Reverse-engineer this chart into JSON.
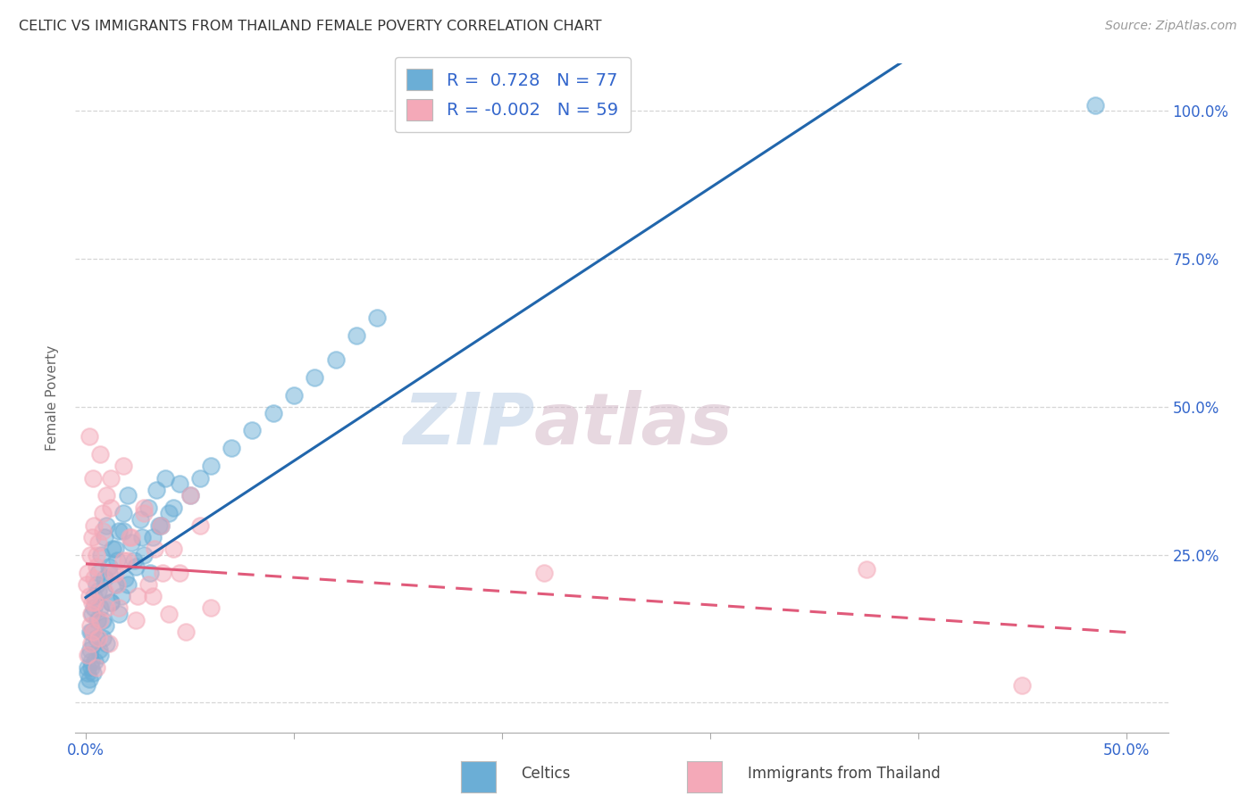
{
  "title": "CELTIC VS IMMIGRANTS FROM THAILAND FEMALE POVERTY CORRELATION CHART",
  "source": "Source: ZipAtlas.com",
  "ylabel": "Female Poverty",
  "celtics_R": 0.728,
  "celtics_N": 77,
  "thailand_R": -0.002,
  "thailand_N": 59,
  "celtics_color": "#6baed6",
  "celtics_line_color": "#2166ac",
  "thailand_color": "#f4a9b8",
  "thailand_line_color": "#e05a7a",
  "watermark_zip": "ZIP",
  "watermark_atlas": "atlas",
  "xmin": 0.0,
  "xmax": 50.0,
  "ymin": 0.0,
  "ymax": 105.0,
  "celtics_x": [
    0.1,
    0.15,
    0.2,
    0.25,
    0.3,
    0.35,
    0.4,
    0.45,
    0.5,
    0.55,
    0.6,
    0.65,
    0.7,
    0.75,
    0.8,
    0.85,
    0.9,
    0.95,
    1.0,
    1.1,
    1.2,
    1.3,
    1.4,
    1.5,
    1.6,
    1.7,
    1.8,
    1.9,
    2.0,
    2.2,
    2.4,
    2.6,
    2.8,
    3.0,
    3.2,
    3.4,
    3.6,
    3.8,
    4.0,
    4.5,
    0.05,
    0.1,
    0.15,
    0.2,
    0.25,
    0.3,
    0.35,
    0.4,
    0.5,
    0.6,
    0.7,
    0.8,
    0.9,
    1.0,
    1.1,
    1.2,
    1.4,
    1.6,
    1.8,
    2.0,
    2.3,
    2.7,
    3.1,
    3.5,
    4.2,
    5.0,
    5.5,
    6.0,
    7.0,
    8.0,
    9.0,
    10.0,
    11.0,
    12.0,
    13.0,
    14.0,
    48.5
  ],
  "celtics_y": [
    5.0,
    8.0,
    12.0,
    6.0,
    15.0,
    10.0,
    18.0,
    7.0,
    20.0,
    14.0,
    22.0,
    9.0,
    16.0,
    25.0,
    11.0,
    19.0,
    28.0,
    13.0,
    30.0,
    22.0,
    17.0,
    26.0,
    20.0,
    24.0,
    29.0,
    18.0,
    32.0,
    21.0,
    35.0,
    27.0,
    23.0,
    31.0,
    25.0,
    33.0,
    28.0,
    36.0,
    30.0,
    38.0,
    32.0,
    37.0,
    3.0,
    6.0,
    4.0,
    9.0,
    7.0,
    12.0,
    5.0,
    16.0,
    11.0,
    19.0,
    8.0,
    14.0,
    21.0,
    10.0,
    23.0,
    17.0,
    26.0,
    15.0,
    29.0,
    20.0,
    24.0,
    28.0,
    22.0,
    30.0,
    33.0,
    35.0,
    38.0,
    40.0,
    43.0,
    46.0,
    49.0,
    52.0,
    55.0,
    58.0,
    62.0,
    65.0,
    101.0
  ],
  "thailand_x": [
    0.05,
    0.1,
    0.15,
    0.2,
    0.25,
    0.3,
    0.35,
    0.4,
    0.45,
    0.5,
    0.6,
    0.7,
    0.8,
    0.9,
    1.0,
    1.1,
    1.2,
    1.4,
    1.6,
    1.8,
    2.0,
    2.2,
    2.5,
    2.8,
    3.0,
    3.3,
    3.6,
    4.0,
    4.5,
    5.0,
    0.1,
    0.2,
    0.3,
    0.4,
    0.5,
    0.6,
    0.8,
    1.0,
    1.2,
    1.5,
    1.8,
    2.1,
    2.4,
    2.8,
    3.2,
    3.7,
    4.2,
    4.8,
    5.5,
    6.0,
    0.15,
    0.25,
    0.35,
    0.5,
    0.7,
    1.3,
    22.0,
    37.5,
    45.0
  ],
  "thailand_y": [
    20.0,
    22.0,
    18.0,
    25.0,
    15.0,
    28.0,
    12.0,
    30.0,
    17.0,
    23.0,
    27.0,
    14.0,
    32.0,
    19.0,
    35.0,
    10.0,
    38.0,
    22.0,
    16.0,
    40.0,
    24.0,
    28.0,
    18.0,
    33.0,
    20.0,
    26.0,
    30.0,
    15.0,
    22.0,
    35.0,
    8.0,
    13.0,
    17.0,
    21.0,
    25.0,
    11.0,
    29.0,
    16.0,
    33.0,
    20.0,
    24.0,
    28.0,
    14.0,
    32.0,
    18.0,
    22.0,
    26.0,
    12.0,
    30.0,
    16.0,
    45.0,
    10.0,
    38.0,
    6.0,
    42.0,
    22.0,
    22.0,
    22.5,
    3.0
  ]
}
